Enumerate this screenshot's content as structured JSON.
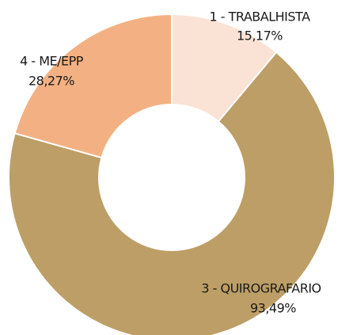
{
  "chart_data": {
    "type": "donut",
    "categories": [
      "1 - TRABALHISTA",
      "3 - QUIROGRAFARIO",
      "4 - ME/EPP"
    ],
    "values": [
      15.17,
      93.49,
      28.27
    ],
    "value_labels": [
      "15,17%",
      "93,49%",
      "28,27%"
    ],
    "colors": [
      "#fae3d4",
      "#bd9e66",
      "#f3b183"
    ]
  }
}
